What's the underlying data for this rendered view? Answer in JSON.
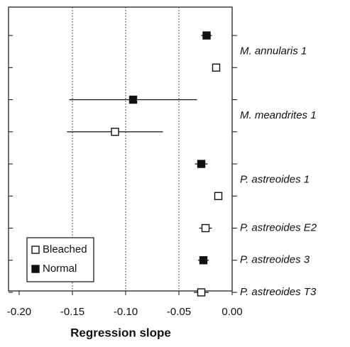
{
  "chart_data": {
    "type": "dot",
    "xlabel": "Regression slope",
    "categories": [
      "M. annularis 1",
      "M. meandrites 1",
      "P. astreoides 1",
      "P. astreoides E2",
      "P. astreoides 3",
      "P. astreoides T3"
    ],
    "series": [
      {
        "name": "Normal",
        "color": "#111111",
        "values": [
          -0.024,
          -0.093,
          -0.029,
          null,
          -0.027,
          null
        ],
        "errors": [
          0.005,
          0.06,
          0.006,
          null,
          0.005,
          null
        ]
      },
      {
        "name": "Bleached",
        "color": "#ffffff",
        "values": [
          -0.015,
          -0.11,
          -0.013,
          -0.025,
          null,
          -0.029
        ],
        "errors": [
          0.002,
          0.045,
          0.003,
          0.006,
          null,
          0.007
        ]
      }
    ],
    "xlim": [
      -0.21,
      0
    ],
    "xticks": [
      {
        "value": -0.2,
        "label": "-0.20"
      },
      {
        "value": -0.15,
        "label": "-0.15"
      },
      {
        "value": -0.1,
        "label": "-0.10"
      },
      {
        "value": -0.05,
        "label": "-0.05"
      },
      {
        "value": 0,
        "label": "0.00"
      }
    ],
    "grid": true,
    "legend": "lower left"
  }
}
